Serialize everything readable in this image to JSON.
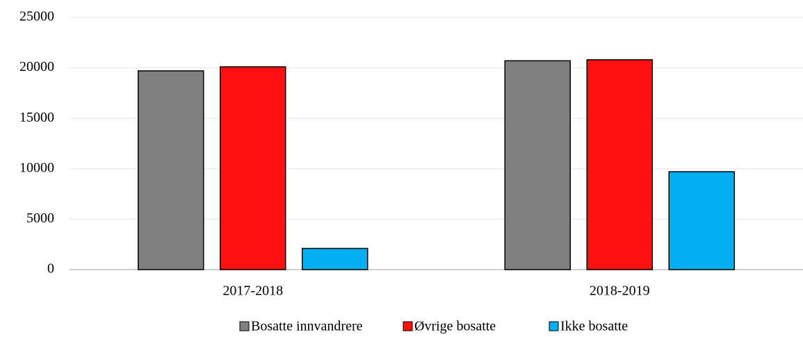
{
  "chart_data": {
    "type": "bar",
    "categories": [
      "2017-2018",
      "2018-2019"
    ],
    "series": [
      {
        "name": "Bosatte innvandrere",
        "color": "#808080",
        "values": [
          19700,
          20700
        ]
      },
      {
        "name": "Øvrige bosatte",
        "color": "#ff1010",
        "values": [
          20100,
          20800
        ]
      },
      {
        "name": "Ikke bosatte",
        "color": "#00b0f0",
        "values": [
          2100,
          9700
        ]
      }
    ],
    "ylim": [
      0,
      25000
    ],
    "yticks": [
      0,
      5000,
      10000,
      15000,
      20000,
      25000
    ],
    "grid": true,
    "legend": "bottom"
  }
}
